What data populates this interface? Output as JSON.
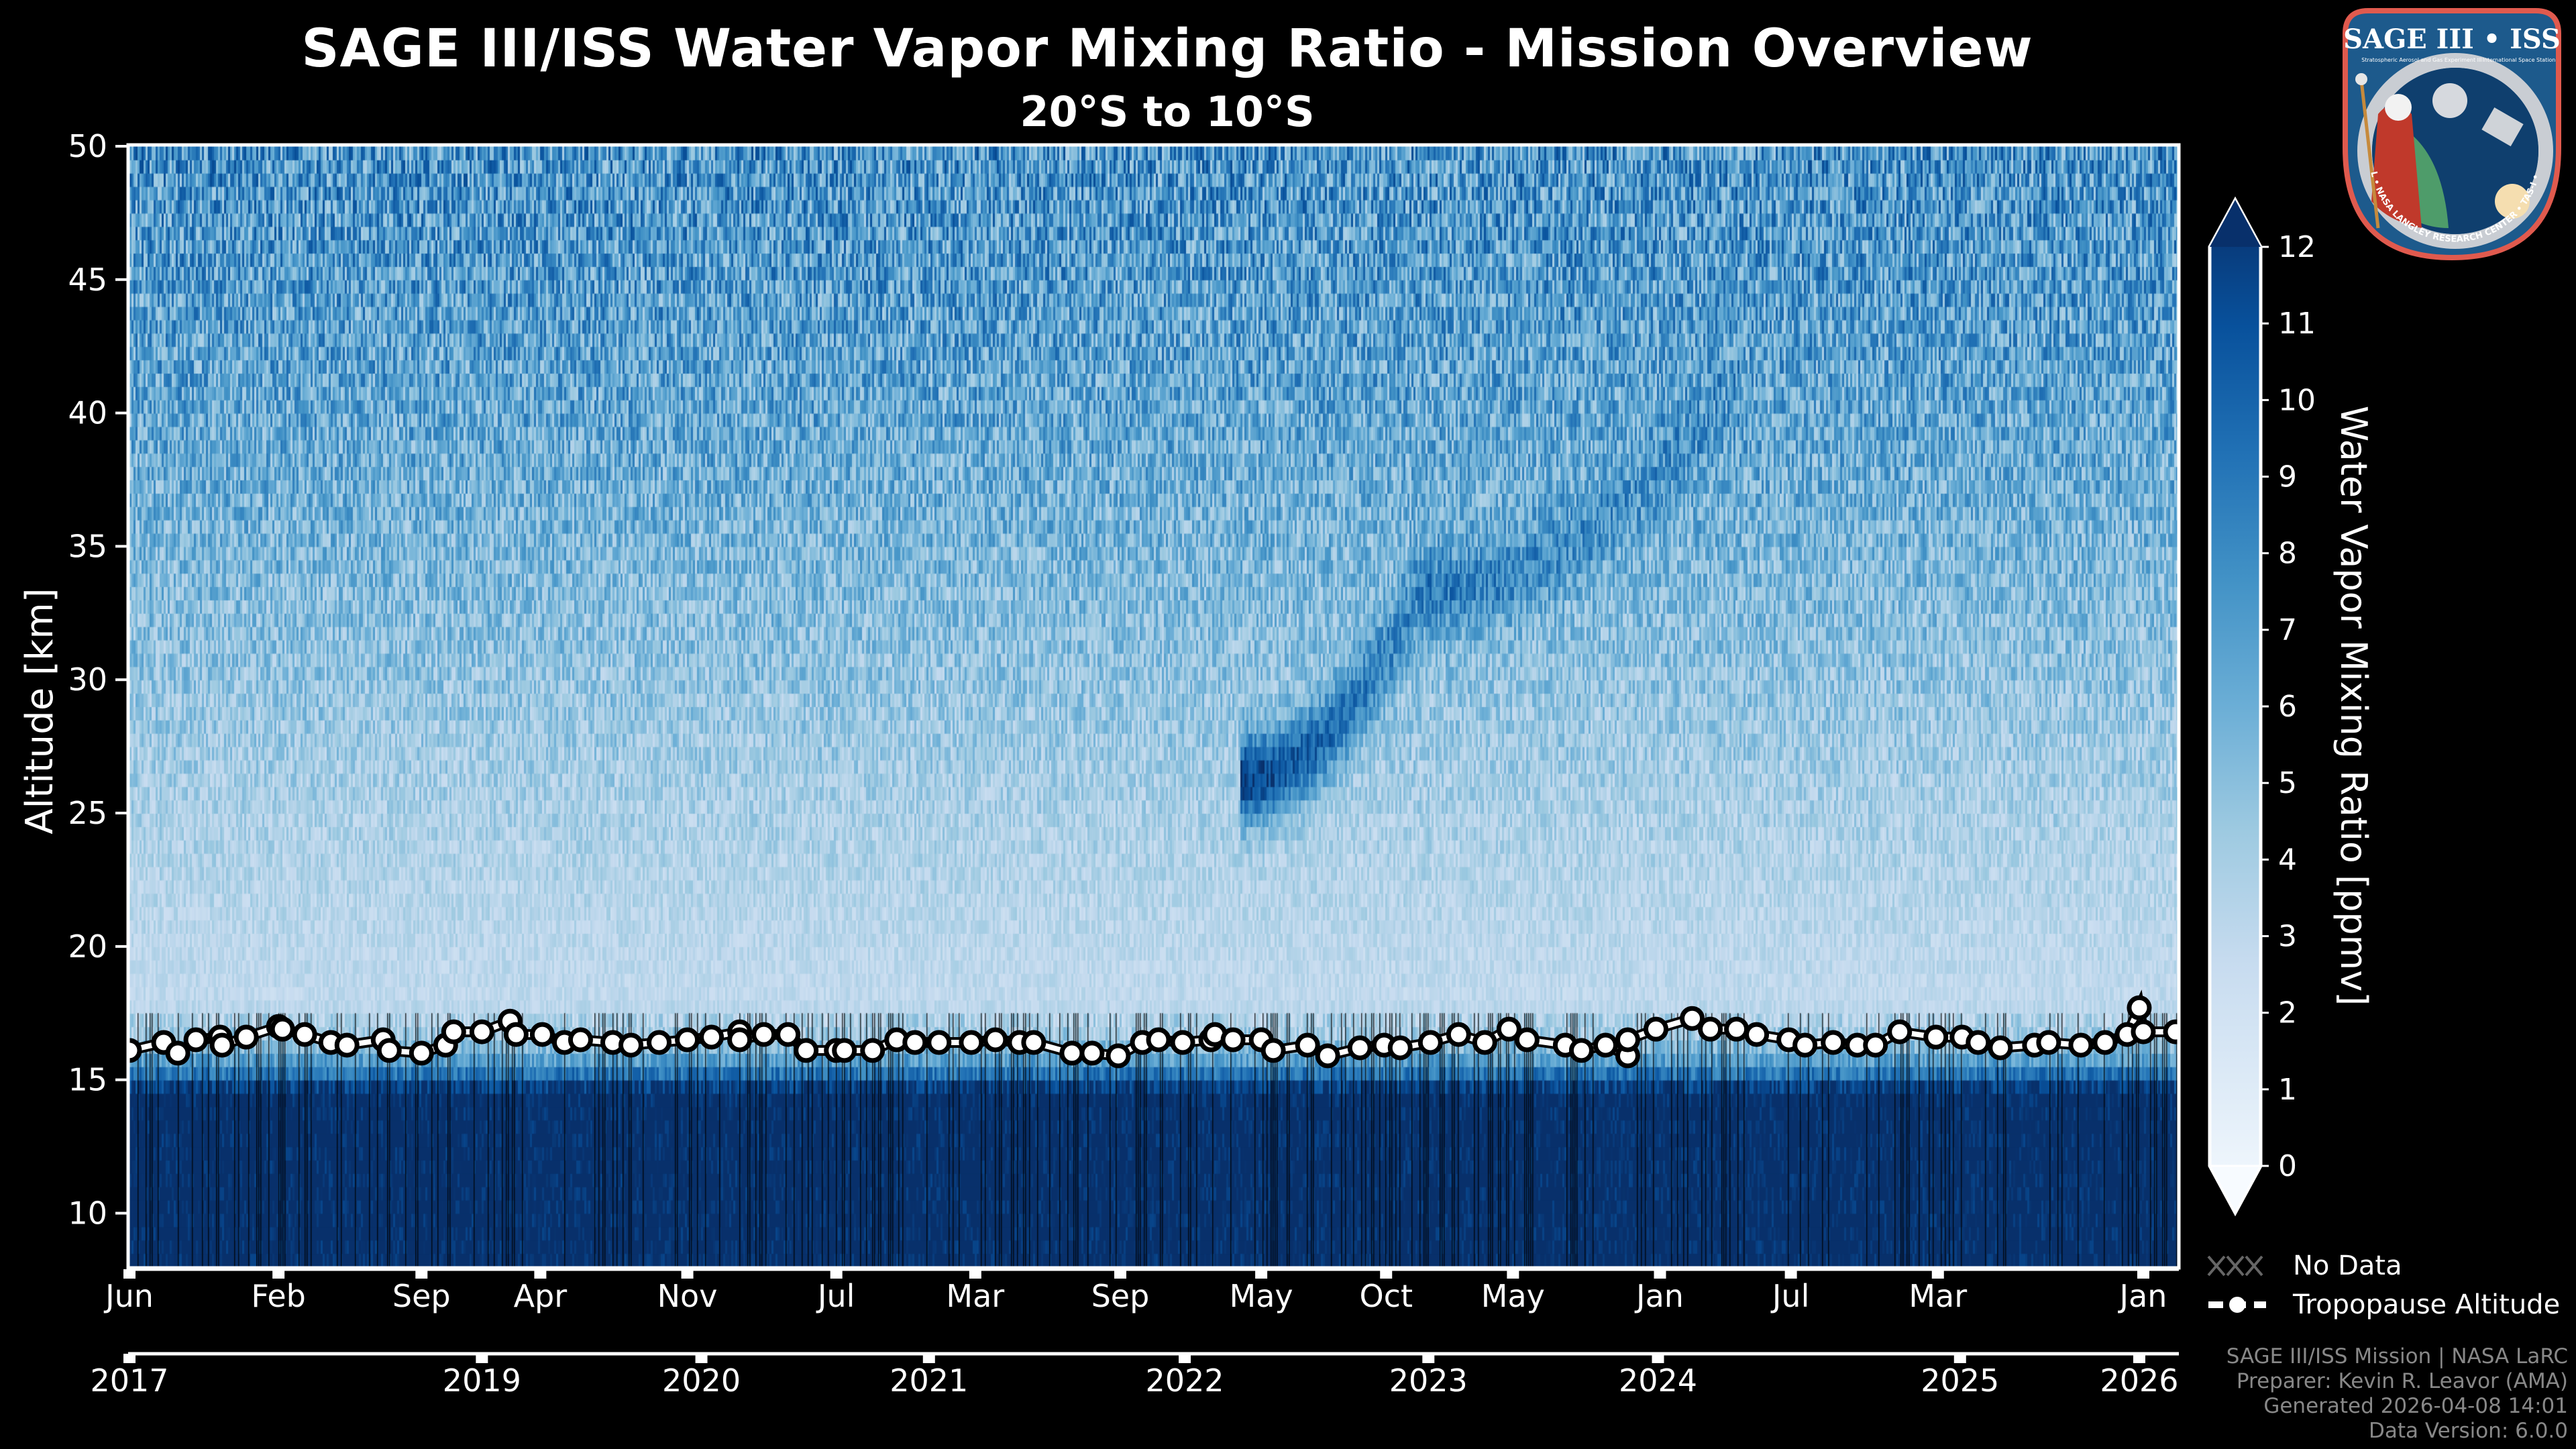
{
  "header": {
    "title": "SAGE III/ISS Water Vapor Mixing Ratio - Mission Overview",
    "subtitle": "20°S to 10°S"
  },
  "logo": {
    "icon": "sage-iii-iss-mission-patch-icon",
    "title": "SAGE III • ISS",
    "line1": "Stratospheric Aerosol and Gas Experiment III",
    "line2": "International Space Station",
    "ring_text": "BALL • NASA LANGLEY RESEARCH CENTER • TAS-I • ESA",
    "colors": {
      "border": "#e05a4e",
      "field": "#1d5a8c",
      "ring": "#c9cdd3"
    }
  },
  "legend": {
    "no_data_label": "No Data",
    "tropopause_label": "Tropopause Altitude"
  },
  "footer": {
    "line1": "SAGE III/ISS Mission | NASA LaRC",
    "line2": "Preparer: Kevin R. Leavor (AMA)",
    "line3": "Generated 2026-04-08 14:01",
    "line4": "Data Version: 6.0.0"
  },
  "chart_data": {
    "type": "heatmap",
    "title": "SAGE III/ISS Water Vapor Mixing Ratio - Mission Overview",
    "subtitle": "20°S to 10°S",
    "ylabel": "Altitude [km]",
    "xlabel": "",
    "ylim": [
      8,
      50
    ],
    "yticks": [
      10,
      15,
      20,
      25,
      30,
      35,
      40,
      45,
      50
    ],
    "x_axis_note": "ordinal event index; month ticks on primary axis, years on secondary axis",
    "xlim": [
      0,
      1017
    ],
    "month_ticks": [
      {
        "index": 0,
        "label": "Jun"
      },
      {
        "index": 74,
        "label": "Feb"
      },
      {
        "index": 145,
        "label": "Sep"
      },
      {
        "index": 204,
        "label": "Apr"
      },
      {
        "index": 277,
        "label": "Nov"
      },
      {
        "index": 351,
        "label": "Jul"
      },
      {
        "index": 420,
        "label": "Mar"
      },
      {
        "index": 492,
        "label": "Sep"
      },
      {
        "index": 562,
        "label": "May"
      },
      {
        "index": 624,
        "label": "Oct"
      },
      {
        "index": 687,
        "label": "May"
      },
      {
        "index": 760,
        "label": "Jan"
      },
      {
        "index": 825,
        "label": "Jul"
      },
      {
        "index": 898,
        "label": "Mar"
      },
      {
        "index": 1000,
        "label": "Jan"
      }
    ],
    "year_ticks": [
      {
        "index": 0,
        "label": "2017"
      },
      {
        "index": 175,
        "label": "2019"
      },
      {
        "index": 284,
        "label": "2020"
      },
      {
        "index": 397,
        "label": "2021"
      },
      {
        "index": 524,
        "label": "2022"
      },
      {
        "index": 645,
        "label": "2023"
      },
      {
        "index": 759,
        "label": "2024"
      },
      {
        "index": 909,
        "label": "2025"
      },
      {
        "index": 998,
        "label": "2026"
      }
    ],
    "colorbar": {
      "label": "Water Vapor Mixing Ratio [ppmv]",
      "colormap": "Blues",
      "vmin": 0,
      "vmax": 12,
      "ticks": [
        0,
        1,
        2,
        3,
        4,
        5,
        6,
        7,
        8,
        9,
        10,
        11,
        12
      ],
      "extend": "both",
      "colors": [
        "#f7fbff",
        "#deebf7",
        "#c6dbef",
        "#9ecae1",
        "#6baed6",
        "#4292c6",
        "#2171b5",
        "#08519c",
        "#08306b"
      ]
    },
    "background_profile_ppmv": [
      {
        "alt_km": 8,
        "value": 12.5
      },
      {
        "alt_km": 14.5,
        "value": 12.5
      },
      {
        "alt_km": 15.5,
        "value": 7.5
      },
      {
        "alt_km": 16.5,
        "value": 4.5
      },
      {
        "alt_km": 18,
        "value": 3.2
      },
      {
        "alt_km": 20,
        "value": 3.4
      },
      {
        "alt_km": 25,
        "value": 4.0
      },
      {
        "alt_km": 30,
        "value": 4.8
      },
      {
        "alt_km": 35,
        "value": 5.6
      },
      {
        "alt_km": 40,
        "value": 6.4
      },
      {
        "alt_km": 45,
        "value": 7.0
      },
      {
        "alt_km": 50,
        "value": 7.4
      }
    ],
    "anomalies": [
      {
        "name": "Hunga Tonga plume",
        "start_index": 551,
        "end_index": 640,
        "alt_start_km": 26.0,
        "alt_end_km": 33.0,
        "peak_ppmv": 11.5
      },
      {
        "name": "Hunga Tonga upper drift",
        "start_index": 640,
        "end_index": 800,
        "alt_start_km": 33.0,
        "alt_end_km": 41.0,
        "peak_ppmv": 8.5
      }
    ],
    "no_data_hatch": {
      "below_km": 17.5,
      "pattern": "x"
    },
    "series": [
      {
        "name": "Tropopause Altitude",
        "marker": "o",
        "color": "#ffffff",
        "edgecolor": "#000000",
        "points": [
          [
            0,
            16.1
          ],
          [
            17,
            16.4
          ],
          [
            24,
            16.0
          ],
          [
            33,
            16.5
          ],
          [
            45,
            16.6
          ],
          [
            46,
            16.3
          ],
          [
            58,
            16.6
          ],
          [
            74,
            17.0
          ],
          [
            76,
            16.9
          ],
          [
            87,
            16.7
          ],
          [
            100,
            16.4
          ],
          [
            108,
            16.3
          ],
          [
            126,
            16.5
          ],
          [
            129,
            16.1
          ],
          [
            145,
            16.0
          ],
          [
            157,
            16.3
          ],
          [
            161,
            16.8
          ],
          [
            175,
            16.8
          ],
          [
            189,
            17.2
          ],
          [
            192,
            16.7
          ],
          [
            205,
            16.7
          ],
          [
            216,
            16.4
          ],
          [
            224,
            16.5
          ],
          [
            240,
            16.4
          ],
          [
            249,
            16.3
          ],
          [
            263,
            16.4
          ],
          [
            277,
            16.5
          ],
          [
            289,
            16.6
          ],
          [
            303,
            16.8
          ],
          [
            303,
            16.5
          ],
          [
            315,
            16.7
          ],
          [
            327,
            16.7
          ],
          [
            336,
            16.1
          ],
          [
            351,
            16.1
          ],
          [
            355,
            16.1
          ],
          [
            369,
            16.1
          ],
          [
            381,
            16.5
          ],
          [
            390,
            16.4
          ],
          [
            402,
            16.4
          ],
          [
            418,
            16.4
          ],
          [
            430,
            16.5
          ],
          [
            442,
            16.4
          ],
          [
            449,
            16.4
          ],
          [
            468,
            16.0
          ],
          [
            478,
            16.0
          ],
          [
            491,
            15.9
          ],
          [
            503,
            16.4
          ],
          [
            511,
            16.5
          ],
          [
            523,
            16.4
          ],
          [
            537,
            16.5
          ],
          [
            539,
            16.7
          ],
          [
            548,
            16.5
          ],
          [
            562,
            16.5
          ],
          [
            568,
            16.1
          ],
          [
            585,
            16.3
          ],
          [
            595,
            15.9
          ],
          [
            611,
            16.2
          ],
          [
            623,
            16.3
          ],
          [
            631,
            16.2
          ],
          [
            646,
            16.4
          ],
          [
            660,
            16.7
          ],
          [
            673,
            16.4
          ],
          [
            685,
            16.9
          ],
          [
            694,
            16.5
          ],
          [
            713,
            16.3
          ],
          [
            721,
            16.1
          ],
          [
            733,
            16.3
          ],
          [
            744,
            15.9
          ],
          [
            744,
            16.5
          ],
          [
            758,
            16.9
          ],
          [
            776,
            17.3
          ],
          [
            785,
            16.9
          ],
          [
            798,
            16.9
          ],
          [
            808,
            16.7
          ],
          [
            824,
            16.5
          ],
          [
            832,
            16.3
          ],
          [
            846,
            16.4
          ],
          [
            858,
            16.3
          ],
          [
            867,
            16.3
          ],
          [
            879,
            16.8
          ],
          [
            897,
            16.6
          ],
          [
            910,
            16.6
          ],
          [
            918,
            16.4
          ],
          [
            929,
            16.2
          ],
          [
            946,
            16.3
          ],
          [
            953,
            16.4
          ],
          [
            969,
            16.3
          ],
          [
            981,
            16.4
          ],
          [
            992,
            16.7
          ],
          [
            998,
            17.7
          ],
          [
            1000,
            16.8
          ],
          [
            1016,
            16.8
          ]
        ]
      }
    ]
  }
}
